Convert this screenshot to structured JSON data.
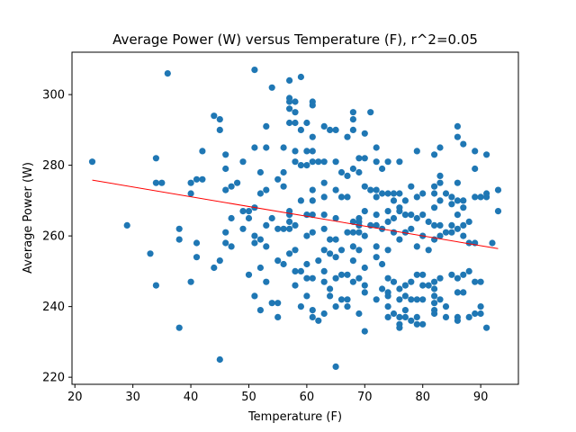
{
  "chart_data": {
    "type": "scatter",
    "title": "Average Power (W) versus Temperature (F), r^2=0.05",
    "xlabel": "Temperature (F)",
    "ylabel": "Average Power (W)",
    "xlim": [
      19.5,
      96.5
    ],
    "ylim": [
      218,
      312
    ],
    "xticks": [
      20,
      30,
      40,
      50,
      60,
      70,
      80,
      90
    ],
    "yticks": [
      220,
      240,
      260,
      280,
      300
    ],
    "grid": false,
    "colors": {
      "points": "#1f77b4",
      "fit_line": "#ff0000"
    },
    "fit_line": {
      "x": [
        23,
        93
      ],
      "y": [
        275.8,
        256.4
      ]
    },
    "points": [
      [
        23,
        281
      ],
      [
        29,
        263
      ],
      [
        33,
        255
      ],
      [
        34,
        282
      ],
      [
        34,
        275
      ],
      [
        35,
        275
      ],
      [
        34,
        246
      ],
      [
        36,
        306
      ],
      [
        38,
        262
      ],
      [
        38,
        259
      ],
      [
        38,
        234
      ],
      [
        40,
        275
      ],
      [
        40,
        272
      ],
      [
        40,
        247
      ],
      [
        41,
        276
      ],
      [
        41,
        258
      ],
      [
        41,
        254
      ],
      [
        42,
        276
      ],
      [
        42,
        284
      ],
      [
        44,
        294
      ],
      [
        44,
        251
      ],
      [
        45,
        293
      ],
      [
        45,
        290
      ],
      [
        45,
        253
      ],
      [
        45,
        225
      ],
      [
        46,
        283
      ],
      [
        46,
        279
      ],
      [
        46,
        273
      ],
      [
        46,
        261
      ],
      [
        46,
        258
      ],
      [
        47,
        274
      ],
      [
        47,
        265
      ],
      [
        47,
        257
      ],
      [
        48,
        275
      ],
      [
        49,
        281
      ],
      [
        49,
        267
      ],
      [
        49,
        262
      ],
      [
        50,
        267
      ],
      [
        50,
        265
      ],
      [
        50,
        249
      ],
      [
        51,
        307
      ],
      [
        51,
        285
      ],
      [
        51,
        268
      ],
      [
        51,
        260
      ],
      [
        51,
        258
      ],
      [
        51,
        243
      ],
      [
        52,
        278
      ],
      [
        52,
        272
      ],
      [
        52,
        259
      ],
      [
        52,
        251
      ],
      [
        52,
        239
      ],
      [
        53,
        291
      ],
      [
        53,
        285
      ],
      [
        53,
        273
      ],
      [
        53,
        263
      ],
      [
        53,
        257
      ],
      [
        53,
        247
      ],
      [
        54,
        302
      ],
      [
        54,
        265
      ],
      [
        54,
        241
      ],
      [
        55,
        276
      ],
      [
        55,
        262
      ],
      [
        55,
        253
      ],
      [
        55,
        241
      ],
      [
        55,
        237
      ],
      [
        56,
        285
      ],
      [
        56,
        278
      ],
      [
        56,
        274
      ],
      [
        56,
        262
      ],
      [
        56,
        252
      ],
      [
        57,
        304
      ],
      [
        57,
        299
      ],
      [
        57,
        298
      ],
      [
        57,
        296
      ],
      [
        57,
        292
      ],
      [
        57,
        267
      ],
      [
        57,
        266
      ],
      [
        57,
        264
      ],
      [
        57,
        262
      ],
      [
        57,
        255
      ],
      [
        58,
        298
      ],
      [
        58,
        295
      ],
      [
        58,
        292
      ],
      [
        58,
        284
      ],
      [
        58,
        281
      ],
      [
        58,
        263
      ],
      [
        58,
        256
      ],
      [
        58,
        250
      ],
      [
        58,
        246
      ],
      [
        59,
        305
      ],
      [
        59,
        290
      ],
      [
        59,
        280
      ],
      [
        59,
        270
      ],
      [
        59,
        250
      ],
      [
        59,
        240
      ],
      [
        60,
        292
      ],
      [
        60,
        284
      ],
      [
        60,
        280
      ],
      [
        60,
        266
      ],
      [
        60,
        260
      ],
      [
        60,
        252
      ],
      [
        60,
        248
      ],
      [
        60,
        243
      ],
      [
        61,
        298
      ],
      [
        61,
        297
      ],
      [
        61,
        288
      ],
      [
        61,
        284
      ],
      [
        61,
        281
      ],
      [
        61,
        273
      ],
      [
        61,
        270
      ],
      [
        61,
        266
      ],
      [
        61,
        261
      ],
      [
        61,
        248
      ],
      [
        61,
        239
      ],
      [
        61,
        237
      ],
      [
        62,
        281
      ],
      [
        62,
        253
      ],
      [
        62,
        236
      ],
      [
        63,
        291
      ],
      [
        63,
        281
      ],
      [
        63,
        275
      ],
      [
        63,
        271
      ],
      [
        63,
        266
      ],
      [
        63,
        262
      ],
      [
        63,
        256
      ],
      [
        63,
        250
      ],
      [
        63,
        247
      ],
      [
        63,
        238
      ],
      [
        64,
        290
      ],
      [
        64,
        259
      ],
      [
        64,
        255
      ],
      [
        64,
        245
      ],
      [
        64,
        243
      ],
      [
        65,
        290
      ],
      [
        65,
        281
      ],
      [
        65,
        273
      ],
      [
        65,
        265
      ],
      [
        65,
        259
      ],
      [
        65,
        254
      ],
      [
        65,
        248
      ],
      [
        65,
        240
      ],
      [
        65,
        223
      ],
      [
        66,
        278
      ],
      [
        66,
        271
      ],
      [
        66,
        256
      ],
      [
        66,
        249
      ],
      [
        66,
        242
      ],
      [
        67,
        288
      ],
      [
        67,
        277
      ],
      [
        67,
        271
      ],
      [
        67,
        261
      ],
      [
        67,
        249
      ],
      [
        67,
        242
      ],
      [
        67,
        240
      ],
      [
        68,
        295
      ],
      [
        68,
        293
      ],
      [
        68,
        290
      ],
      [
        68,
        279
      ],
      [
        68,
        264
      ],
      [
        68,
        261
      ],
      [
        68,
        257
      ],
      [
        68,
        253
      ],
      [
        68,
        247
      ],
      [
        69,
        282
      ],
      [
        69,
        278
      ],
      [
        69,
        265
      ],
      [
        69,
        264
      ],
      [
        69,
        263
      ],
      [
        69,
        261
      ],
      [
        69,
        256
      ],
      [
        69,
        248
      ],
      [
        69,
        238
      ],
      [
        70,
        289
      ],
      [
        70,
        282
      ],
      [
        70,
        274
      ],
      [
        70,
        267
      ],
      [
        70,
        260
      ],
      [
        70,
        251
      ],
      [
        70,
        246
      ],
      [
        70,
        244
      ],
      [
        70,
        233
      ],
      [
        71,
        295
      ],
      [
        71,
        273
      ],
      [
        71,
        263
      ],
      [
        72,
        285
      ],
      [
        72,
        281
      ],
      [
        72,
        273
      ],
      [
        72,
        271
      ],
      [
        72,
        266
      ],
      [
        72,
        263
      ],
      [
        72,
        257
      ],
      [
        72,
        254
      ],
      [
        72,
        242
      ],
      [
        73,
        279
      ],
      [
        73,
        272
      ],
      [
        73,
        262
      ],
      [
        73,
        252
      ],
      [
        73,
        245
      ],
      [
        74,
        281
      ],
      [
        74,
        272
      ],
      [
        74,
        267
      ],
      [
        74,
        264
      ],
      [
        74,
        256
      ],
      [
        74,
        248
      ],
      [
        74,
        244
      ],
      [
        74,
        243
      ],
      [
        74,
        240
      ],
      [
        74,
        237
      ],
      [
        75,
        272
      ],
      [
        75,
        270
      ],
      [
        75,
        265
      ],
      [
        75,
        261
      ],
      [
        75,
        247
      ],
      [
        75,
        238
      ],
      [
        76,
        281
      ],
      [
        76,
        272
      ],
      [
        76,
        268
      ],
      [
        76,
        267
      ],
      [
        76,
        259
      ],
      [
        76,
        245
      ],
      [
        76,
        242
      ],
      [
        76,
        237
      ],
      [
        76,
        235
      ],
      [
        76,
        234
      ],
      [
        77,
        270
      ],
      [
        77,
        266
      ],
      [
        77,
        261
      ],
      [
        77,
        246
      ],
      [
        77,
        243
      ],
      [
        77,
        239
      ],
      [
        77,
        237
      ],
      [
        78,
        274
      ],
      [
        78,
        266
      ],
      [
        78,
        262
      ],
      [
        78,
        247
      ],
      [
        78,
        242
      ],
      [
        78,
        236
      ],
      [
        79,
        284
      ],
      [
        79,
        271
      ],
      [
        79,
        265
      ],
      [
        79,
        257
      ],
      [
        79,
        249
      ],
      [
        79,
        242
      ],
      [
        79,
        237
      ],
      [
        79,
        235
      ],
      [
        80,
        272
      ],
      [
        80,
        266
      ],
      [
        80,
        260
      ],
      [
        80,
        249
      ],
      [
        80,
        246
      ],
      [
        80,
        242
      ],
      [
        80,
        235
      ],
      [
        81,
        264
      ],
      [
        81,
        256
      ],
      [
        81,
        246
      ],
      [
        82,
        283
      ],
      [
        82,
        274
      ],
      [
        82,
        272
      ],
      [
        82,
        268
      ],
      [
        82,
        263
      ],
      [
        82,
        259
      ],
      [
        82,
        247
      ],
      [
        82,
        245
      ],
      [
        82,
        243
      ],
      [
        82,
        241
      ],
      [
        82,
        239
      ],
      [
        82,
        238
      ],
      [
        83,
        285
      ],
      [
        83,
        277
      ],
      [
        83,
        275
      ],
      [
        83,
        270
      ],
      [
        83,
        263
      ],
      [
        83,
        260
      ],
      [
        83,
        248
      ],
      [
        83,
        242
      ],
      [
        84,
        272
      ],
      [
        84,
        261
      ],
      [
        84,
        240
      ],
      [
        84,
        237
      ],
      [
        85,
        271
      ],
      [
        85,
        269
      ],
      [
        85,
        263
      ],
      [
        85,
        261
      ],
      [
        85,
        249
      ],
      [
        86,
        291
      ],
      [
        86,
        288
      ],
      [
        86,
        275
      ],
      [
        86,
        270
      ],
      [
        86,
        266
      ],
      [
        86,
        262
      ],
      [
        86,
        248
      ],
      [
        86,
        244
      ],
      [
        86,
        237
      ],
      [
        86,
        236
      ],
      [
        87,
        286
      ],
      [
        87,
        270
      ],
      [
        87,
        268
      ],
      [
        87,
        263
      ],
      [
        87,
        260
      ],
      [
        87,
        249
      ],
      [
        87,
        244
      ],
      [
        88,
        264
      ],
      [
        88,
        258
      ],
      [
        88,
        250
      ],
      [
        88,
        237
      ],
      [
        89,
        284
      ],
      [
        89,
        279
      ],
      [
        89,
        271
      ],
      [
        89,
        258
      ],
      [
        89,
        247
      ],
      [
        89,
        238
      ],
      [
        90,
        271
      ],
      [
        90,
        247
      ],
      [
        90,
        240
      ],
      [
        90,
        238
      ],
      [
        91,
        283
      ],
      [
        91,
        272
      ],
      [
        91,
        271
      ],
      [
        91,
        234
      ],
      [
        92,
        258
      ],
      [
        93,
        273
      ],
      [
        93,
        267
      ]
    ]
  }
}
